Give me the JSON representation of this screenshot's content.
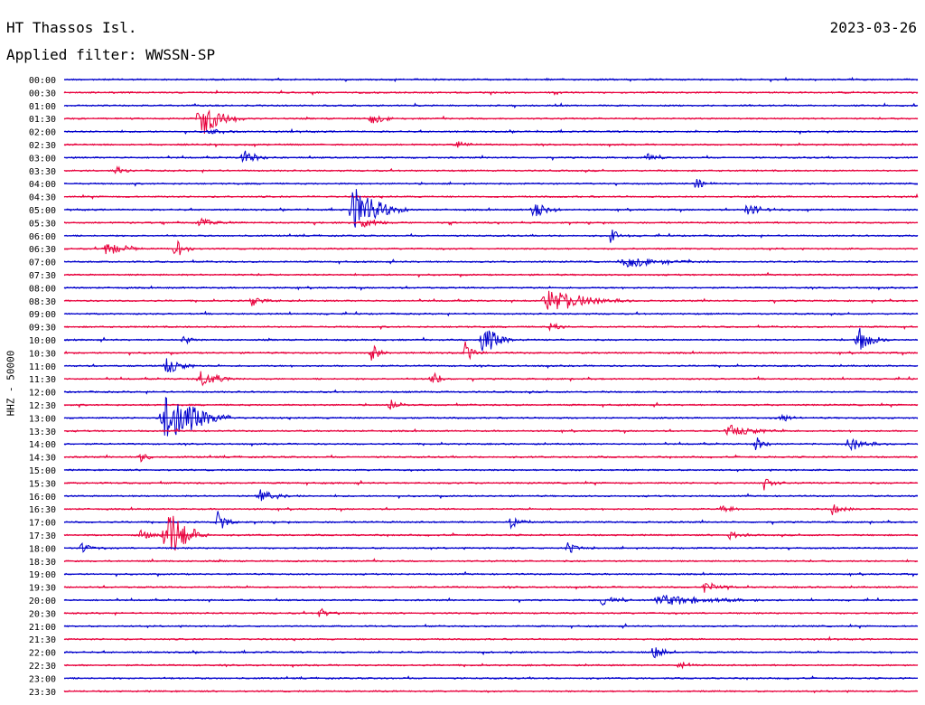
{
  "header": {
    "station": "HT Thassos Isl.",
    "date": "2023-03-26",
    "filter": "Applied filter: WWSSN-SP"
  },
  "axis": {
    "ylabel": "HHZ - 50000"
  },
  "colors": {
    "even_rows": "#0000cc",
    "odd_rows": "#e8003c",
    "background": "#ffffff",
    "text": "#000000"
  },
  "chart_data": {
    "type": "helicorder",
    "row_labels": [
      "00:00",
      "00:30",
      "01:00",
      "01:30",
      "02:00",
      "02:30",
      "03:00",
      "03:30",
      "04:00",
      "04:30",
      "05:00",
      "05:30",
      "06:00",
      "06:30",
      "07:00",
      "07:30",
      "08:00",
      "08:30",
      "09:00",
      "09:30",
      "10:00",
      "10:30",
      "11:00",
      "11:30",
      "12:00",
      "12:30",
      "13:00",
      "13:30",
      "14:00",
      "14:30",
      "15:00",
      "15:30",
      "16:00",
      "16:30",
      "17:00",
      "17:30",
      "18:00",
      "18:30",
      "19:00",
      "19:30",
      "20:00",
      "20:30",
      "21:00",
      "21:30",
      "22:00",
      "22:30",
      "23:00",
      "23:30"
    ],
    "row_minutes": 30,
    "events": [
      {
        "row": "01:30",
        "pos": 0.16,
        "amp": 1.0,
        "dur": 0.02
      },
      {
        "row": "01:30",
        "pos": 0.36,
        "amp": 0.3,
        "dur": 0.015
      },
      {
        "row": "02:00",
        "pos": 0.17,
        "amp": 0.15,
        "dur": 0.02
      },
      {
        "row": "02:30",
        "pos": 0.46,
        "amp": 0.2,
        "dur": 0.01
      },
      {
        "row": "03:00",
        "pos": 0.21,
        "amp": 0.4,
        "dur": 0.015
      },
      {
        "row": "03:00",
        "pos": 0.68,
        "amp": 0.3,
        "dur": 0.01
      },
      {
        "row": "03:30",
        "pos": 0.06,
        "amp": 0.2,
        "dur": 0.01
      },
      {
        "row": "04:00",
        "pos": 0.74,
        "amp": 0.35,
        "dur": 0.01
      },
      {
        "row": "05:00",
        "pos": 0.34,
        "amp": 1.2,
        "dur": 0.025
      },
      {
        "row": "05:00",
        "pos": 0.55,
        "amp": 0.4,
        "dur": 0.015
      },
      {
        "row": "05:00",
        "pos": 0.8,
        "amp": 0.3,
        "dur": 0.02
      },
      {
        "row": "05:30",
        "pos": 0.16,
        "amp": 0.3,
        "dur": 0.015
      },
      {
        "row": "05:30",
        "pos": 0.35,
        "amp": 0.35,
        "dur": 0.015
      },
      {
        "row": "06:00",
        "pos": 0.64,
        "amp": 0.4,
        "dur": 0.01
      },
      {
        "row": "06:30",
        "pos": 0.05,
        "amp": 0.4,
        "dur": 0.02
      },
      {
        "row": "06:30",
        "pos": 0.13,
        "amp": 0.5,
        "dur": 0.01
      },
      {
        "row": "07:00",
        "pos": 0.66,
        "amp": 0.3,
        "dur": 0.04
      },
      {
        "row": "08:30",
        "pos": 0.57,
        "amp": 0.65,
        "dur": 0.04
      },
      {
        "row": "08:30",
        "pos": 0.22,
        "amp": 0.25,
        "dur": 0.015
      },
      {
        "row": "09:30",
        "pos": 0.57,
        "amp": 0.3,
        "dur": 0.01
      },
      {
        "row": "10:00",
        "pos": 0.49,
        "amp": 0.9,
        "dur": 0.015
      },
      {
        "row": "10:00",
        "pos": 0.93,
        "amp": 0.7,
        "dur": 0.015
      },
      {
        "row": "10:00",
        "pos": 0.14,
        "amp": 0.3,
        "dur": 0.01
      },
      {
        "row": "10:30",
        "pos": 0.36,
        "amp": 0.45,
        "dur": 0.01
      },
      {
        "row": "10:30",
        "pos": 0.47,
        "amp": 0.5,
        "dur": 0.01
      },
      {
        "row": "11:00",
        "pos": 0.12,
        "amp": 0.5,
        "dur": 0.015
      },
      {
        "row": "11:30",
        "pos": 0.16,
        "amp": 0.45,
        "dur": 0.02
      },
      {
        "row": "11:30",
        "pos": 0.43,
        "amp": 0.45,
        "dur": 0.01
      },
      {
        "row": "12:30",
        "pos": 0.38,
        "amp": 0.35,
        "dur": 0.01
      },
      {
        "row": "13:00",
        "pos": 0.12,
        "amp": 1.6,
        "dur": 0.03
      },
      {
        "row": "13:00",
        "pos": 0.84,
        "amp": 0.3,
        "dur": 0.01
      },
      {
        "row": "13:30",
        "pos": 0.78,
        "amp": 0.3,
        "dur": 0.03
      },
      {
        "row": "14:00",
        "pos": 0.81,
        "amp": 0.4,
        "dur": 0.01
      },
      {
        "row": "14:00",
        "pos": 0.92,
        "amp": 0.4,
        "dur": 0.02
      },
      {
        "row": "14:30",
        "pos": 0.09,
        "amp": 0.3,
        "dur": 0.01
      },
      {
        "row": "15:30",
        "pos": 0.82,
        "amp": 0.35,
        "dur": 0.01
      },
      {
        "row": "16:00",
        "pos": 0.23,
        "amp": 0.3,
        "dur": 0.02
      },
      {
        "row": "16:30",
        "pos": 0.77,
        "amp": 0.3,
        "dur": 0.01
      },
      {
        "row": "16:30",
        "pos": 0.9,
        "amp": 0.3,
        "dur": 0.01
      },
      {
        "row": "17:00",
        "pos": 0.18,
        "amp": 0.6,
        "dur": 0.01
      },
      {
        "row": "17:00",
        "pos": 0.52,
        "amp": 0.45,
        "dur": 0.01
      },
      {
        "row": "17:30",
        "pos": 0.12,
        "amp": 1.5,
        "dur": 0.02
      },
      {
        "row": "17:30",
        "pos": 0.09,
        "amp": 0.3,
        "dur": 0.01
      },
      {
        "row": "17:30",
        "pos": 0.78,
        "amp": 0.3,
        "dur": 0.01
      },
      {
        "row": "18:00",
        "pos": 0.59,
        "amp": 0.35,
        "dur": 0.01
      },
      {
        "row": "18:00",
        "pos": 0.02,
        "amp": 0.3,
        "dur": 0.01
      },
      {
        "row": "19:30",
        "pos": 0.75,
        "amp": 0.3,
        "dur": 0.015
      },
      {
        "row": "20:00",
        "pos": 0.7,
        "amp": 0.3,
        "dur": 0.05
      },
      {
        "row": "20:00",
        "pos": 0.63,
        "amp": 0.25,
        "dur": 0.015
      },
      {
        "row": "20:30",
        "pos": 0.3,
        "amp": 0.3,
        "dur": 0.01
      },
      {
        "row": "22:00",
        "pos": 0.69,
        "amp": 0.5,
        "dur": 0.01
      },
      {
        "row": "22:30",
        "pos": 0.72,
        "amp": 0.3,
        "dur": 0.01
      }
    ]
  }
}
